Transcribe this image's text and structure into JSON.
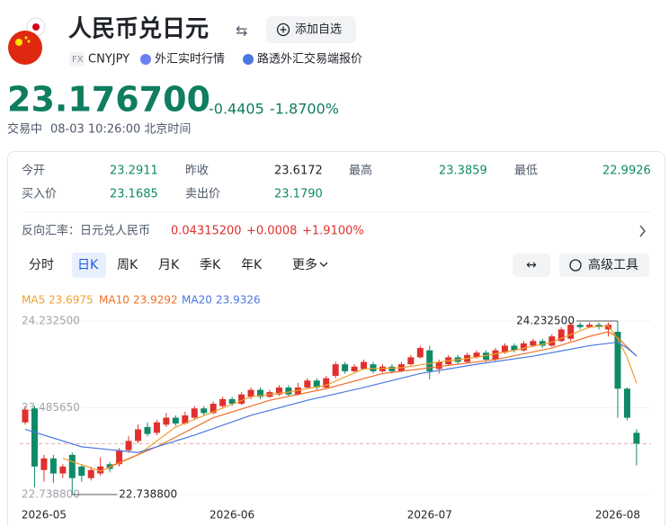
{
  "header": {
    "title": "人民币兑日元",
    "add_button": "添加自选",
    "badge": "FX",
    "symbol": "CNYJPY",
    "link1": "外汇实时行情",
    "link2": "路透外汇交易端报价"
  },
  "quote": {
    "price": "23.176700",
    "change": "-0.4405",
    "change_pct": "-1.8700%",
    "status": "交易中",
    "time": "08-03 10:26:00 北京时间"
  },
  "stats": [
    [
      "今开",
      "23.2911"
    ],
    [
      "昨收",
      "23.6172"
    ],
    [
      "最高",
      "23.3859"
    ],
    [
      "最低",
      "22.9926"
    ],
    [
      "买入价",
      "23.1685"
    ],
    [
      "卖出价",
      "23.1790"
    ]
  ],
  "reverse": {
    "label": "反向汇率：日元兑人民币",
    "rate": "0.04315200",
    "change": "+0.0008",
    "change_pct": "+1.9100%"
  },
  "tabs": [
    "分时",
    "日K",
    "周K",
    "月K",
    "季K",
    "年K",
    "更多"
  ],
  "tools": "高级工具",
  "chart_data": {
    "type": "candlestick",
    "categories": [
      null,
      null,
      "2026-05",
      null,
      null,
      null,
      null,
      null,
      null,
      null,
      null,
      null,
      null,
      null,
      null,
      null,
      null,
      null,
      null,
      null,
      null,
      null,
      "2026-06",
      null,
      null,
      null,
      null,
      null,
      null,
      null,
      null,
      null,
      null,
      null,
      null,
      null,
      null,
      null,
      null,
      null,
      null,
      null,
      null,
      "2026-07",
      null,
      null,
      null,
      null,
      null,
      null,
      null,
      null,
      null,
      null,
      null,
      null,
      null,
      null,
      null,
      null,
      null,
      null,
      null,
      "2026-08",
      null,
      null
    ],
    "open": [
      23.36,
      23.48,
      22.95,
      23.05,
      22.92,
      23.08,
      22.98,
      22.88,
      22.92,
      23.0,
      23.0,
      23.12,
      23.2,
      23.32,
      23.27,
      23.34,
      23.4,
      23.35,
      23.4,
      23.48,
      23.44,
      23.5,
      23.56,
      23.52,
      23.58,
      23.64,
      23.58,
      23.6,
      23.66,
      23.6,
      23.66,
      23.72,
      23.66,
      23.76,
      23.86,
      23.8,
      23.82,
      23.86,
      23.8,
      23.84,
      23.8,
      23.86,
      23.92,
      23.98,
      23.82,
      23.86,
      23.92,
      23.88,
      23.92,
      23.96,
      23.9,
      23.96,
      24.02,
      23.98,
      24.02,
      24.06,
      24.02,
      24.06,
      24.08,
      24.2,
      24.18,
      24.2,
      24.16,
      24.14,
      23.65,
      23.27
    ],
    "high": [
      23.5,
      23.5,
      23.08,
      23.08,
      23.0,
      23.1,
      23.0,
      22.98,
      23.06,
      23.02,
      23.14,
      23.24,
      23.34,
      23.36,
      23.38,
      23.44,
      23.42,
      23.45,
      23.5,
      23.5,
      23.54,
      23.58,
      23.58,
      23.62,
      23.66,
      23.66,
      23.64,
      23.68,
      23.68,
      23.7,
      23.74,
      23.74,
      23.76,
      23.88,
      23.88,
      23.86,
      23.9,
      23.88,
      23.86,
      23.86,
      23.88,
      23.94,
      24.02,
      24.02,
      23.9,
      23.94,
      23.94,
      23.96,
      23.98,
      23.98,
      24.0,
      24.04,
      24.04,
      24.06,
      24.08,
      24.08,
      24.12,
      24.18,
      24.22,
      24.22,
      24.22,
      24.22,
      24.22,
      24.2325,
      23.66,
      23.3
    ],
    "low": [
      23.34,
      22.8,
      22.85,
      22.84,
      22.88,
      22.7388,
      22.85,
      22.86,
      22.9,
      22.93,
      22.98,
      23.1,
      23.18,
      23.24,
      23.25,
      23.32,
      23.33,
      23.34,
      23.38,
      23.42,
      23.43,
      23.48,
      23.5,
      23.51,
      23.56,
      23.56,
      23.57,
      23.59,
      23.58,
      23.59,
      23.65,
      23.64,
      23.65,
      23.74,
      23.78,
      23.79,
      23.81,
      23.78,
      23.79,
      23.78,
      23.79,
      23.85,
      23.91,
      23.73,
      23.78,
      23.85,
      23.86,
      23.87,
      23.91,
      23.88,
      23.89,
      23.95,
      23.96,
      23.97,
      24.01,
      24.0,
      24.01,
      24.05,
      24.06,
      24.16,
      24.17,
      24.16,
      24.1,
      23.4,
      23.38,
      22.99
    ],
    "close": [
      23.47,
      22.98,
      23.05,
      22.92,
      22.98,
      22.88,
      22.9,
      22.95,
      22.98,
      22.96,
      23.12,
      23.2,
      23.3,
      23.26,
      23.36,
      23.4,
      23.35,
      23.42,
      23.48,
      23.44,
      23.52,
      23.56,
      23.52,
      23.6,
      23.64,
      23.58,
      23.62,
      23.66,
      23.6,
      23.66,
      23.72,
      23.66,
      23.74,
      23.86,
      23.8,
      23.84,
      23.88,
      23.8,
      23.84,
      23.8,
      23.86,
      23.92,
      24.0,
      23.8,
      23.88,
      23.92,
      23.88,
      23.94,
      23.96,
      23.9,
      23.98,
      24.02,
      23.98,
      24.04,
      24.06,
      24.02,
      24.1,
      24.16,
      24.2,
      24.18,
      24.2,
      24.18,
      24.2,
      23.65,
      23.4,
      23.1767
    ],
    "up_color": "#e0302d",
    "down_color": "#0f8a66",
    "ylim": [
      22.7388,
      24.2325
    ],
    "yticks": [
      {
        "value": 24.2325,
        "label": "24.232500"
      },
      {
        "value": 23.48565,
        "label": "23.485650"
      },
      {
        "value": 22.7388,
        "label": "22.738800"
      }
    ],
    "last_price": 23.1767,
    "annotations": [
      {
        "x": 63,
        "value": 24.2325,
        "label": "24.232500"
      },
      {
        "x": 5,
        "value": 22.7388,
        "label": "22.738800"
      }
    ],
    "series": [
      {
        "name": "MA5",
        "last": "23.6975",
        "color": "#f0a030",
        "x": [
          4,
          8,
          12,
          16,
          20,
          24,
          28,
          32,
          36,
          40,
          44,
          48,
          52,
          56,
          60,
          62,
          63,
          64,
          65
        ],
        "values": [
          23.05,
          22.94,
          23.08,
          23.32,
          23.45,
          23.58,
          23.62,
          23.68,
          23.82,
          23.83,
          23.88,
          23.92,
          23.98,
          24.05,
          24.18,
          24.19,
          24.08,
          23.92,
          23.6975
        ]
      },
      {
        "name": "MA10",
        "last": "23.9292",
        "color": "#f0702a",
        "x": [
          9,
          14,
          20,
          26,
          32,
          38,
          44,
          50,
          56,
          60,
          62,
          63,
          64,
          65
        ],
        "values": [
          22.98,
          23.15,
          23.4,
          23.55,
          23.65,
          23.78,
          23.84,
          23.9,
          24.0,
          24.1,
          24.14,
          24.09,
          24.01,
          23.9292
        ]
      },
      {
        "name": "MA20",
        "last": "23.9326",
        "color": "#4a78e0",
        "x": [
          0,
          6,
          12,
          18,
          24,
          30,
          36,
          42,
          48,
          54,
          60,
          63,
          64,
          65
        ],
        "values": [
          23.3,
          23.15,
          23.1,
          23.25,
          23.42,
          23.55,
          23.66,
          23.78,
          23.86,
          23.93,
          24.02,
          24.05,
          24.0,
          23.9326
        ]
      }
    ]
  }
}
